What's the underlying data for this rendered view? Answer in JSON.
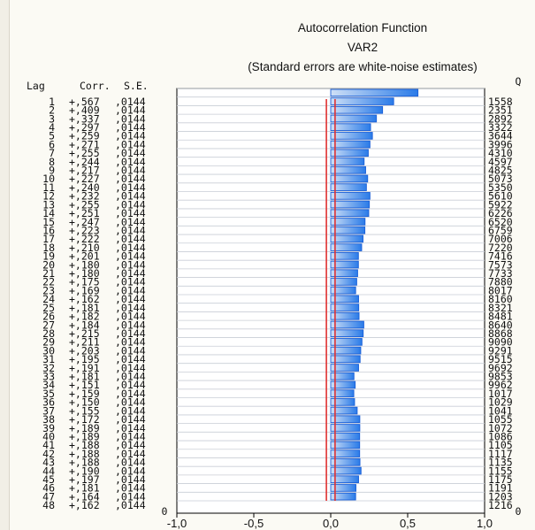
{
  "chart_data": {
    "type": "bar",
    "orientation": "horizontal",
    "title": "Autocorrelation Function",
    "subtitle": "VAR2",
    "note": "(Standard errors are white-noise estimates)",
    "col_headers": {
      "lag": "Lag",
      "corr": "Corr.",
      "se": "S.E.",
      "q": "Q"
    },
    "xlim": [
      -1.0,
      1.0
    ],
    "xticks": [
      "-1,0",
      "-0,5",
      "0,0",
      "0,5",
      "1,0"
    ],
    "xtick_values": [
      -1.0,
      -0.5,
      0.0,
      0.5,
      1.0
    ],
    "lags": [
      1,
      2,
      3,
      4,
      5,
      6,
      7,
      8,
      9,
      10,
      11,
      12,
      13,
      14,
      15,
      16,
      17,
      18,
      19,
      20,
      21,
      22,
      23,
      24,
      25,
      26,
      27,
      28,
      29,
      30,
      31,
      32,
      33,
      34,
      35,
      36,
      37,
      38,
      39,
      40,
      41,
      42,
      43,
      44,
      45,
      46,
      47,
      48
    ],
    "corr_labels": [
      "+,567",
      "+,409",
      "+,337",
      "+,297",
      "+,259",
      "+,271",
      "+,255",
      "+,244",
      "+,217",
      "+,227",
      "+,240",
      "+,232",
      "+,255",
      "+,251",
      "+,247",
      "+,223",
      "+,222",
      "+,210",
      "+,201",
      "+,180",
      "+,180",
      "+,175",
      "+,169",
      "+,162",
      "+,181",
      "+,182",
      "+,184",
      "+,215",
      "+,211",
      "+,203",
      "+,195",
      "+,191",
      "+,181",
      "+,151",
      "+,159",
      "+,150",
      "+,155",
      "+,172",
      "+,189",
      "+,189",
      "+,188",
      "+,188",
      "+,188",
      "+,190",
      "+,197",
      "+,181",
      "+,164",
      "+,162"
    ],
    "values": [
      0.567,
      0.409,
      0.337,
      0.297,
      0.259,
      0.271,
      0.255,
      0.244,
      0.217,
      0.227,
      0.24,
      0.232,
      0.255,
      0.251,
      0.247,
      0.223,
      0.222,
      0.21,
      0.201,
      0.18,
      0.18,
      0.175,
      0.169,
      0.162,
      0.181,
      0.182,
      0.184,
      0.215,
      0.211,
      0.203,
      0.195,
      0.191,
      0.181,
      0.151,
      0.159,
      0.15,
      0.155,
      0.172,
      0.189,
      0.189,
      0.188,
      0.188,
      0.188,
      0.19,
      0.197,
      0.181,
      0.164,
      0.162
    ],
    "se_label": ",0144",
    "se_value": 0.0144,
    "q_labels": [
      "1558",
      "2351",
      "2892",
      "3322",
      "3644",
      "3996",
      "4310",
      "4597",
      "4825",
      "5073",
      "5350",
      "5610",
      "5922",
      "6226",
      "6520",
      "6759",
      "7006",
      "7220",
      "7416",
      "7573",
      "7733",
      "7880",
      "8017",
      "8160",
      "8321",
      "8481",
      "8640",
      "8868",
      "9090",
      "9291",
      "9515",
      "9692",
      "9853",
      "9962",
      "1017",
      "1029",
      "1041",
      "1055",
      "1072",
      "1086",
      "1105",
      "1117",
      "1135",
      "1155",
      "1175",
      "1191",
      "1203",
      "1216"
    ],
    "confidence_limit": 0.0282,
    "zero_row_label": "0",
    "colors": {
      "bar_edge": "#1a5fd8",
      "bar_light": "#cfe0f6",
      "bar_dark": "#2a7be8",
      "limit_line": "#e03131"
    }
  }
}
